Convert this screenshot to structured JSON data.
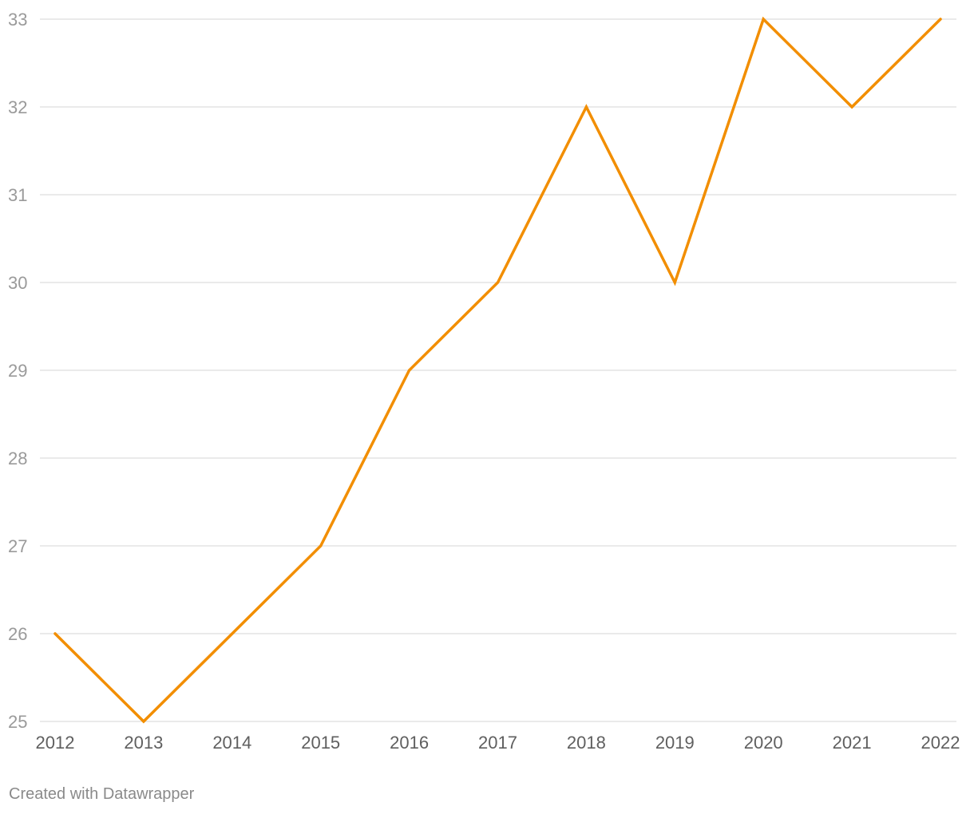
{
  "chart_data": {
    "type": "line",
    "title": "",
    "xlabel": "",
    "ylabel": "",
    "x": [
      2012,
      2013,
      2014,
      2015,
      2016,
      2017,
      2018,
      2019,
      2020,
      2021,
      2022
    ],
    "series": [
      {
        "values": [
          26,
          25,
          26,
          27,
          29,
          30,
          32,
          30,
          33,
          32,
          33
        ],
        "color": "#f28e00"
      }
    ],
    "xlim": [
      2012,
      2022
    ],
    "ylim": [
      25,
      33
    ],
    "y_ticks": [
      25,
      26,
      27,
      28,
      29,
      30,
      31,
      32,
      33
    ],
    "x_tick_labels": [
      "2012",
      "2013",
      "2014",
      "2015",
      "2016",
      "2017",
      "2018",
      "2019",
      "2020",
      "2021",
      "2022"
    ],
    "grid": true,
    "legend": "none"
  },
  "colors": {
    "line": "#f28e00",
    "grid": "#e3e3e3",
    "y_tick_text": "#9a9a9a",
    "x_tick_text": "#5f5f5f"
  },
  "footer": {
    "credit": "Created with Datawrapper"
  }
}
